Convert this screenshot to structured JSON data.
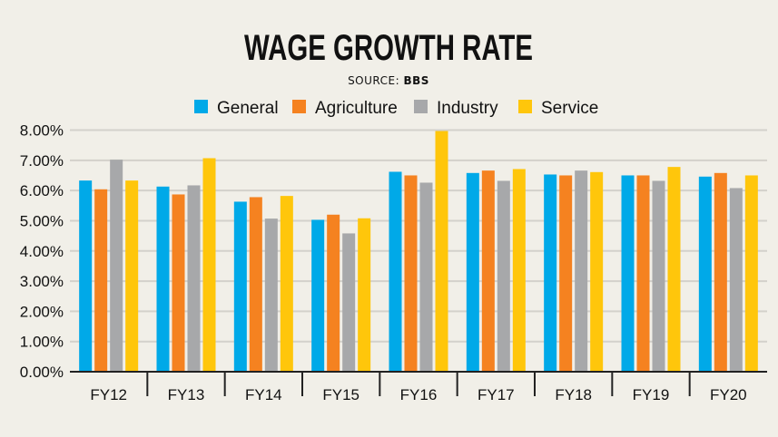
{
  "chart_data": {
    "type": "bar",
    "title": "WAGE GROWTH RATE",
    "source_label": "SOURCE:",
    "source_value": "BBS",
    "categories": [
      "FY12",
      "FY13",
      "FY14",
      "FY15",
      "FY16",
      "FY17",
      "FY18",
      "FY19",
      "FY20"
    ],
    "series": [
      {
        "name": "General",
        "color": "#00a9e8",
        "values": [
          6.33,
          6.13,
          5.63,
          5.03,
          6.62,
          6.58,
          6.53,
          6.5,
          6.46
        ]
      },
      {
        "name": "Agriculture",
        "color": "#f58220",
        "values": [
          6.04,
          5.87,
          5.78,
          5.2,
          6.5,
          6.66,
          6.5,
          6.5,
          6.58
        ]
      },
      {
        "name": "Industry",
        "color": "#a7a8aa",
        "values": [
          7.02,
          6.17,
          5.07,
          4.58,
          6.26,
          6.32,
          6.66,
          6.32,
          6.08
        ]
      },
      {
        "name": "Service",
        "color": "#ffc60b",
        "values": [
          6.33,
          7.07,
          5.82,
          5.08,
          7.97,
          6.71,
          6.61,
          6.78,
          6.5
        ]
      }
    ],
    "y_ticks": [
      "0.00%",
      "1.00%",
      "2.00%",
      "3.00%",
      "4.00%",
      "5.00%",
      "6.00%",
      "7.00%",
      "8.00%"
    ],
    "ylim": [
      0,
      8
    ],
    "grid": true,
    "legend_position": "top",
    "xlabel": "",
    "ylabel": ""
  }
}
